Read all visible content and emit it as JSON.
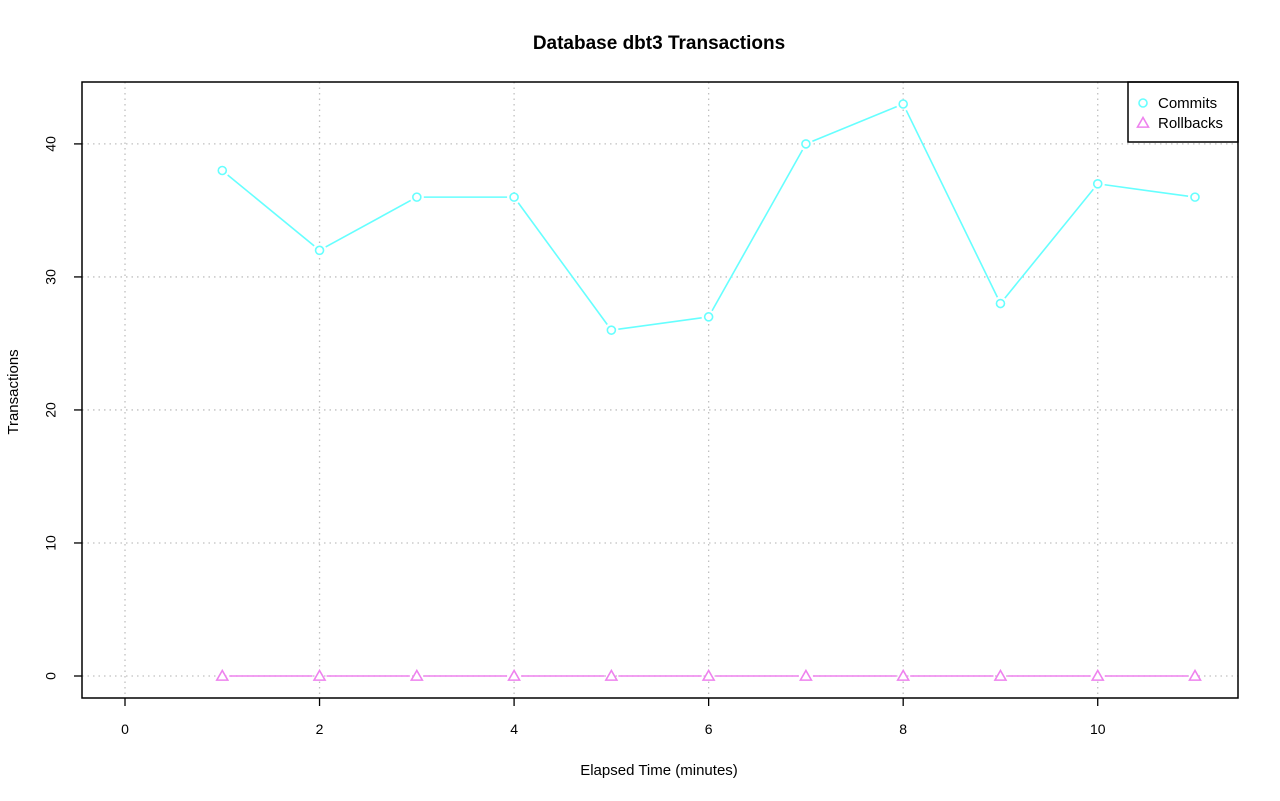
{
  "chart_data": {
    "type": "line",
    "title": "Database dbt3 Transactions",
    "xlabel": "Elapsed Time (minutes)",
    "ylabel": "Transactions",
    "xlim": [
      0,
      11
    ],
    "ylim": [
      0,
      43
    ],
    "x_ticks": [
      0,
      2,
      4,
      6,
      8,
      10
    ],
    "y_ticks": [
      0,
      10,
      20,
      30,
      40
    ],
    "grid": true,
    "legend_position": "top-right",
    "x": [
      1,
      2,
      3,
      4,
      5,
      6,
      7,
      8,
      9,
      10,
      11
    ],
    "series": [
      {
        "name": "Commits",
        "color": "#66ffff",
        "marker": "circle",
        "values": [
          38,
          32,
          36,
          36,
          26,
          27,
          40,
          43,
          28,
          37,
          36
        ]
      },
      {
        "name": "Rollbacks",
        "color": "#ee82ee",
        "marker": "triangle",
        "values": [
          0,
          0,
          0,
          0,
          0,
          0,
          0,
          0,
          0,
          0,
          0
        ]
      }
    ]
  }
}
